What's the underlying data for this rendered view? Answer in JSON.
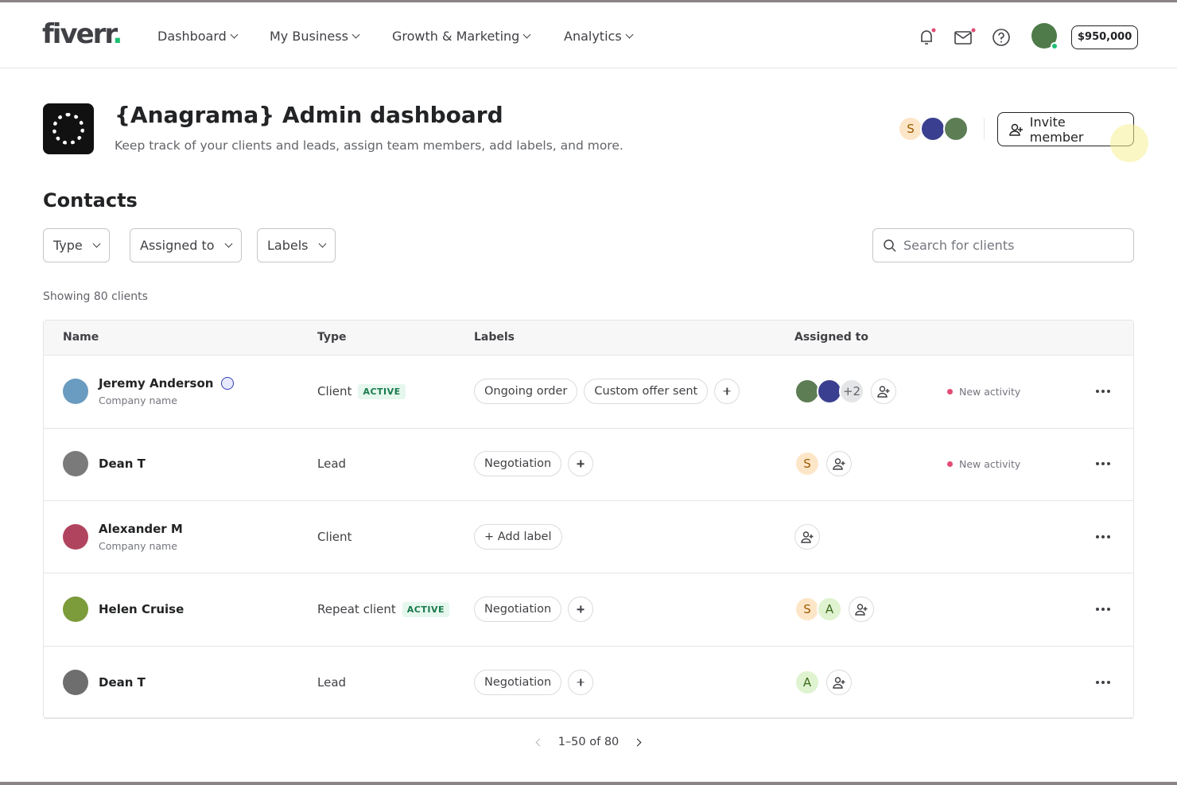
{
  "nav": {
    "logo": "fiverr",
    "logo_dot": ".",
    "items": [
      "Dashboard",
      "My Business",
      "Growth & Marketing",
      "Analytics"
    ],
    "balance": "$950,000"
  },
  "header": {
    "title": "{Anagrama} Admin dashboard",
    "subtitle": "Keep track of your clients and leads, assign team members, add labels, and more.",
    "team_initial": "S",
    "invite": "Invite member"
  },
  "contacts": {
    "heading": "Contacts",
    "filters": [
      "Type",
      "Assigned to",
      "Labels"
    ],
    "search_placeholder": "Search for clients",
    "count": "Showing 80 clients",
    "columns": [
      "Name",
      "Type",
      "Labels",
      "Assigned to"
    ],
    "rows": [
      {
        "name": "Jeremy Anderson",
        "company": "Company name",
        "type": "Client",
        "status": "ACTIVE",
        "labels": [
          "Ongoing order",
          "Custom offer sent"
        ],
        "assignees": [],
        "extra": "+2",
        "activity": "New activity"
      },
      {
        "name": "Dean T",
        "type": "Lead",
        "labels": [
          "Negotiation"
        ],
        "assignees": [
          "S"
        ],
        "activity": "New activity"
      },
      {
        "name": "Alexander M",
        "company": "Company name",
        "type": "Client",
        "add_label": "+ Add label",
        "assignees": []
      },
      {
        "name": "Helen Cruise",
        "type": "Repeat client",
        "status": "ACTIVE",
        "labels": [
          "Negotiation"
        ],
        "assignees": [
          "S",
          "A"
        ]
      },
      {
        "name": "Dean T",
        "type": "Lead",
        "labels": [
          "Negotiation"
        ],
        "assignees": [
          "A"
        ]
      }
    ],
    "pagination": "1–50 of 80"
  }
}
